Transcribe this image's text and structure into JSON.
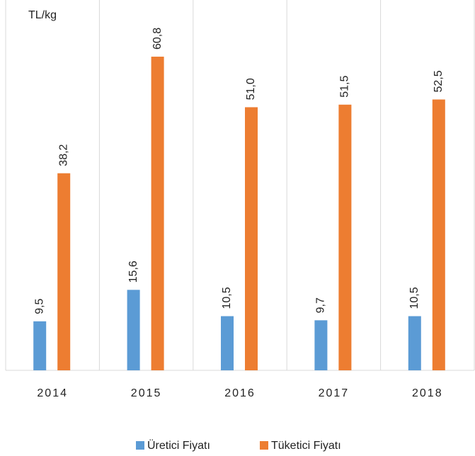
{
  "chart_data": {
    "type": "bar",
    "y_label": "TL/kg",
    "categories": [
      "2014",
      "2015",
      "2016",
      "2017",
      "2018"
    ],
    "series": [
      {
        "name": "Üretici Fiyatı",
        "color": "#5b9bd5",
        "values": [
          9.5,
          15.6,
          10.5,
          9.7,
          10.5
        ],
        "value_labels": [
          "9,5",
          "15,6",
          "10,5",
          "9,7",
          "10,5"
        ]
      },
      {
        "name": "Tüketici Fiyatı",
        "color": "#ed7d31",
        "values": [
          38.2,
          60.8,
          51.0,
          51.5,
          52.5
        ],
        "value_labels": [
          "38,2",
          "60,8",
          "51,0",
          "51,5",
          "52,5"
        ]
      }
    ],
    "ylim": [
      0,
      70
    ],
    "legend": "bottom"
  }
}
